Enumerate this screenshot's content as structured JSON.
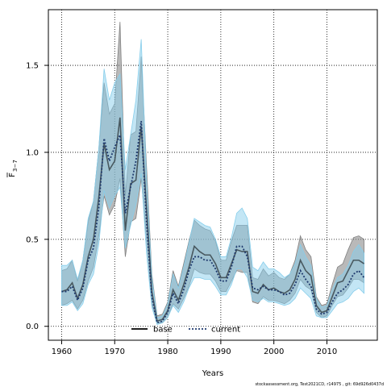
{
  "chart_data": {
    "type": "area",
    "xlabel": "Years",
    "ylabel_main": "F",
    "ylabel_sub": "3−7",
    "xlim": [
      1957.5,
      2019.5
    ],
    "ylim": [
      -0.08,
      1.82
    ],
    "x_ticks": [
      1960,
      1970,
      1980,
      1990,
      2000,
      2010
    ],
    "y_ticks": [
      0.0,
      0.5,
      1.0,
      1.5
    ],
    "y_tick_labels": [
      "0.0",
      "0.5",
      "1.0",
      "1.5"
    ],
    "grid": true,
    "legend_position": "bottom-center",
    "footer": "stockassessment.org, Test2021CD, r14975 , git: 69d926d0437d",
    "x": [
      1960,
      1961,
      1962,
      1963,
      1964,
      1965,
      1966,
      1967,
      1968,
      1969,
      1970,
      1971,
      1972,
      1973,
      1974,
      1975,
      1976,
      1977,
      1978,
      1979,
      1980,
      1981,
      1982,
      1983,
      1984,
      1985,
      1986,
      1987,
      1988,
      1989,
      1990,
      1991,
      1992,
      1993,
      1994,
      1995,
      1996,
      1997,
      1998,
      1999,
      2000,
      2001,
      2002,
      2003,
      2004,
      2005,
      2006,
      2007,
      2008,
      2009,
      2010,
      2011,
      2012,
      2013,
      2014,
      2015,
      2016,
      2017
    ],
    "series": [
      {
        "name": "base",
        "color": "#000000",
        "band_color": "#808080",
        "values": [
          0.2,
          0.21,
          0.25,
          0.16,
          0.24,
          0.4,
          0.5,
          0.74,
          1.05,
          0.9,
          0.95,
          1.2,
          0.55,
          0.82,
          0.84,
          1.15,
          0.68,
          0.2,
          0.03,
          0.04,
          0.09,
          0.21,
          0.15,
          0.24,
          0.34,
          0.46,
          0.43,
          0.41,
          0.41,
          0.36,
          0.28,
          0.28,
          0.36,
          0.44,
          0.43,
          0.43,
          0.2,
          0.19,
          0.24,
          0.21,
          0.22,
          0.2,
          0.19,
          0.21,
          0.27,
          0.38,
          0.32,
          0.29,
          0.12,
          0.08,
          0.09,
          0.17,
          0.25,
          0.26,
          0.32,
          0.38,
          0.38,
          0.36
        ],
        "lower": [
          0.12,
          0.13,
          0.15,
          0.1,
          0.15,
          0.26,
          0.34,
          0.52,
          0.75,
          0.64,
          0.7,
          0.85,
          0.4,
          0.6,
          0.62,
          0.85,
          0.5,
          0.13,
          0.02,
          0.02,
          0.05,
          0.13,
          0.1,
          0.16,
          0.23,
          0.33,
          0.31,
          0.3,
          0.3,
          0.26,
          0.2,
          0.2,
          0.26,
          0.32,
          0.31,
          0.31,
          0.14,
          0.13,
          0.17,
          0.15,
          0.15,
          0.14,
          0.13,
          0.15,
          0.19,
          0.27,
          0.23,
          0.21,
          0.08,
          0.05,
          0.06,
          0.12,
          0.17,
          0.18,
          0.22,
          0.27,
          0.27,
          0.25
        ],
        "upper": [
          0.32,
          0.33,
          0.38,
          0.26,
          0.38,
          0.6,
          0.72,
          1.02,
          1.4,
          1.22,
          1.28,
          1.75,
          0.75,
          1.1,
          1.12,
          1.55,
          0.92,
          0.3,
          0.06,
          0.07,
          0.14,
          0.32,
          0.23,
          0.36,
          0.49,
          0.61,
          0.58,
          0.56,
          0.55,
          0.49,
          0.38,
          0.38,
          0.49,
          0.58,
          0.58,
          0.58,
          0.28,
          0.27,
          0.33,
          0.29,
          0.31,
          0.28,
          0.27,
          0.3,
          0.38,
          0.52,
          0.44,
          0.4,
          0.17,
          0.12,
          0.13,
          0.24,
          0.34,
          0.36,
          0.44,
          0.51,
          0.52,
          0.5
        ]
      },
      {
        "name": "current",
        "color": "#1f3a6e",
        "band_color": "#87ceeb",
        "values": [
          0.2,
          0.2,
          0.23,
          0.15,
          0.22,
          0.38,
          0.45,
          0.68,
          1.08,
          0.95,
          1.03,
          1.1,
          0.65,
          0.8,
          0.95,
          1.18,
          0.6,
          0.17,
          0.02,
          0.03,
          0.08,
          0.19,
          0.13,
          0.21,
          0.32,
          0.4,
          0.4,
          0.38,
          0.38,
          0.33,
          0.26,
          0.26,
          0.34,
          0.46,
          0.46,
          0.4,
          0.22,
          0.21,
          0.23,
          0.21,
          0.21,
          0.2,
          0.18,
          0.19,
          0.24,
          0.32,
          0.27,
          0.23,
          0.1,
          0.07,
          0.08,
          0.14,
          0.19,
          0.21,
          0.24,
          0.3,
          0.32,
          0.28
        ],
        "lower": [
          0.12,
          0.12,
          0.14,
          0.09,
          0.13,
          0.24,
          0.3,
          0.47,
          0.78,
          0.68,
          0.75,
          0.8,
          0.45,
          0.58,
          0.7,
          0.88,
          0.42,
          0.11,
          0.01,
          0.02,
          0.05,
          0.12,
          0.08,
          0.14,
          0.22,
          0.28,
          0.28,
          0.27,
          0.27,
          0.23,
          0.18,
          0.18,
          0.24,
          0.33,
          0.33,
          0.28,
          0.15,
          0.14,
          0.16,
          0.14,
          0.14,
          0.13,
          0.12,
          0.13,
          0.16,
          0.22,
          0.19,
          0.16,
          0.06,
          0.05,
          0.05,
          0.09,
          0.13,
          0.14,
          0.16,
          0.2,
          0.22,
          0.19
        ],
        "upper": [
          0.35,
          0.35,
          0.38,
          0.27,
          0.38,
          0.62,
          0.72,
          1.02,
          1.48,
          1.3,
          1.4,
          1.45,
          0.9,
          1.1,
          1.3,
          1.65,
          0.85,
          0.28,
          0.05,
          0.06,
          0.13,
          0.3,
          0.22,
          0.34,
          0.48,
          0.62,
          0.6,
          0.58,
          0.57,
          0.5,
          0.4,
          0.4,
          0.51,
          0.65,
          0.68,
          0.62,
          0.34,
          0.32,
          0.37,
          0.33,
          0.33,
          0.31,
          0.28,
          0.3,
          0.36,
          0.47,
          0.4,
          0.35,
          0.16,
          0.11,
          0.12,
          0.21,
          0.28,
          0.3,
          0.35,
          0.43,
          0.47,
          0.42
        ]
      }
    ]
  }
}
